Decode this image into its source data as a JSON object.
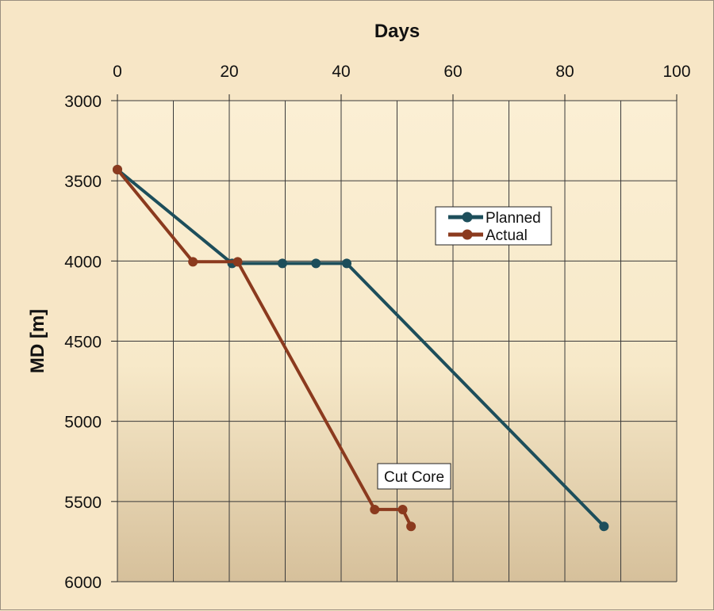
{
  "chart_data": {
    "type": "line",
    "xlabel": "Days",
    "ylabel": "MD [m]",
    "xlim": [
      0,
      100
    ],
    "ylim": [
      3000,
      6000
    ],
    "y_inverted": true,
    "x_axis_position": "top",
    "x_ticks": [
      "0",
      "20",
      "40",
      "60",
      "80",
      "100"
    ],
    "y_ticks": [
      "3000",
      "3500",
      "4000",
      "4500",
      "5000",
      "5500",
      "6000"
    ],
    "grid": true,
    "legend": "right",
    "series": [
      {
        "name": "Planned",
        "color": "#1d4e5b",
        "points": [
          [
            0,
            3430
          ],
          [
            20.5,
            4015
          ],
          [
            29.5,
            4015
          ],
          [
            35.5,
            4015
          ],
          [
            41,
            4015
          ],
          [
            87,
            5655
          ]
        ]
      },
      {
        "name": "Actual",
        "color": "#8b3a1e",
        "points": [
          [
            0,
            3430
          ],
          [
            13.5,
            4005
          ],
          [
            21.5,
            4005
          ],
          [
            46,
            5550
          ],
          [
            51,
            5550
          ],
          [
            52.5,
            5655
          ]
        ]
      }
    ],
    "annotations": [
      {
        "text": "Cut Core",
        "x": 47,
        "y": 5420
      }
    ]
  }
}
